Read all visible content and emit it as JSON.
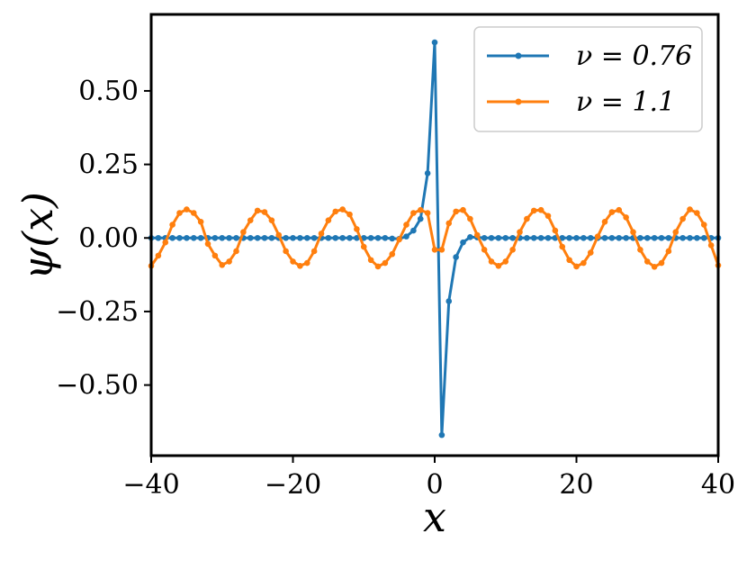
{
  "chart_data": {
    "type": "line",
    "title": "",
    "xlabel": "x",
    "ylabel": "ψ(x)",
    "xlim": [
      -40,
      40
    ],
    "ylim": [
      -0.74,
      0.76
    ],
    "grid": false,
    "legend_placement": "top-right",
    "x_ticks": [
      -40,
      -20,
      0,
      20,
      40
    ],
    "x_tick_labels": [
      "−40",
      "−20",
      "0",
      "20",
      "40"
    ],
    "y_ticks": [
      0.5,
      0.25,
      0.0,
      -0.25,
      -0.5
    ],
    "y_tick_labels": [
      "0.50",
      "0.25",
      "0.00",
      "−0.25",
      "−0.50"
    ],
    "series": [
      {
        "name": "ν = 0.76",
        "color": "#1f77b4",
        "x": [
          -40,
          -39,
          -38,
          -37,
          -36,
          -35,
          -34,
          -33,
          -32,
          -31,
          -30,
          -29,
          -28,
          -27,
          -26,
          -25,
          -24,
          -23,
          -22,
          -21,
          -20,
          -19,
          -18,
          -17,
          -16,
          -15,
          -14,
          -13,
          -12,
          -11,
          -10,
          -9,
          -8,
          -7,
          -6,
          -5,
          -4,
          -3,
          -2,
          -1,
          0,
          1,
          2,
          3,
          4,
          5,
          6,
          7,
          8,
          9,
          10,
          11,
          12,
          13,
          14,
          15,
          16,
          17,
          18,
          19,
          20,
          21,
          22,
          23,
          24,
          25,
          26,
          27,
          28,
          29,
          30,
          31,
          32,
          33,
          34,
          35,
          36,
          37,
          38,
          39,
          40
        ],
        "y": [
          0,
          0,
          0,
          0,
          0,
          0,
          0,
          0,
          0,
          0,
          0,
          0,
          0,
          0,
          0,
          0,
          0,
          0,
          0,
          0,
          0,
          0,
          0,
          0,
          0,
          0,
          0,
          0,
          0,
          0,
          0,
          0,
          0,
          0,
          -0.002,
          -0.003,
          0.005,
          0.025,
          0.065,
          0.22,
          0.665,
          -0.67,
          -0.215,
          -0.065,
          -0.015,
          0.003,
          0.002,
          0,
          0,
          0,
          0,
          0,
          0,
          0,
          0,
          0,
          0,
          0,
          0,
          0,
          0,
          0,
          0,
          0,
          0,
          0,
          0,
          0,
          0,
          0,
          0,
          0,
          0,
          0,
          0,
          0,
          0,
          0,
          0,
          0,
          0
        ]
      },
      {
        "name": "ν = 1.1",
        "color": "#ff7f0e",
        "x": [
          -40,
          -39,
          -38,
          -37,
          -36,
          -35,
          -34,
          -33,
          -32,
          -31,
          -30,
          -29,
          -28,
          -27,
          -26,
          -25,
          -24,
          -23,
          -22,
          -21,
          -20,
          -19,
          -18,
          -17,
          -16,
          -15,
          -14,
          -13,
          -12,
          -11,
          -10,
          -9,
          -8,
          -7,
          -6,
          -5,
          -4,
          -3,
          -2,
          -1,
          0,
          1,
          2,
          3,
          4,
          5,
          6,
          7,
          8,
          9,
          10,
          11,
          12,
          13,
          14,
          15,
          16,
          17,
          18,
          19,
          20,
          21,
          22,
          23,
          24,
          25,
          26,
          27,
          28,
          29,
          30,
          31,
          32,
          33,
          34,
          35,
          36,
          37,
          38,
          39,
          40
        ],
        "y": [
          -0.095,
          -0.06,
          -0.015,
          0.045,
          0.085,
          0.097,
          0.085,
          0.055,
          -0.02,
          -0.06,
          -0.092,
          -0.08,
          -0.045,
          0.02,
          0.06,
          0.093,
          0.088,
          0.06,
          0.01,
          -0.045,
          -0.08,
          -0.095,
          -0.085,
          -0.045,
          0.015,
          0.06,
          0.09,
          0.097,
          0.08,
          0.03,
          -0.03,
          -0.075,
          -0.097,
          -0.085,
          -0.055,
          -0.005,
          0.045,
          0.085,
          0.095,
          0.085,
          -0.04,
          -0.04,
          0.05,
          0.09,
          0.095,
          0.065,
          0.01,
          -0.04,
          -0.08,
          -0.095,
          -0.08,
          -0.04,
          0.02,
          0.065,
          0.093,
          0.095,
          0.075,
          0.025,
          -0.03,
          -0.075,
          -0.097,
          -0.085,
          -0.05,
          0.005,
          0.055,
          0.088,
          0.095,
          0.07,
          0.02,
          -0.04,
          -0.08,
          -0.098,
          -0.085,
          -0.045,
          0.02,
          0.065,
          0.097,
          0.085,
          0.045,
          -0.025,
          -0.093
        ]
      }
    ]
  }
}
